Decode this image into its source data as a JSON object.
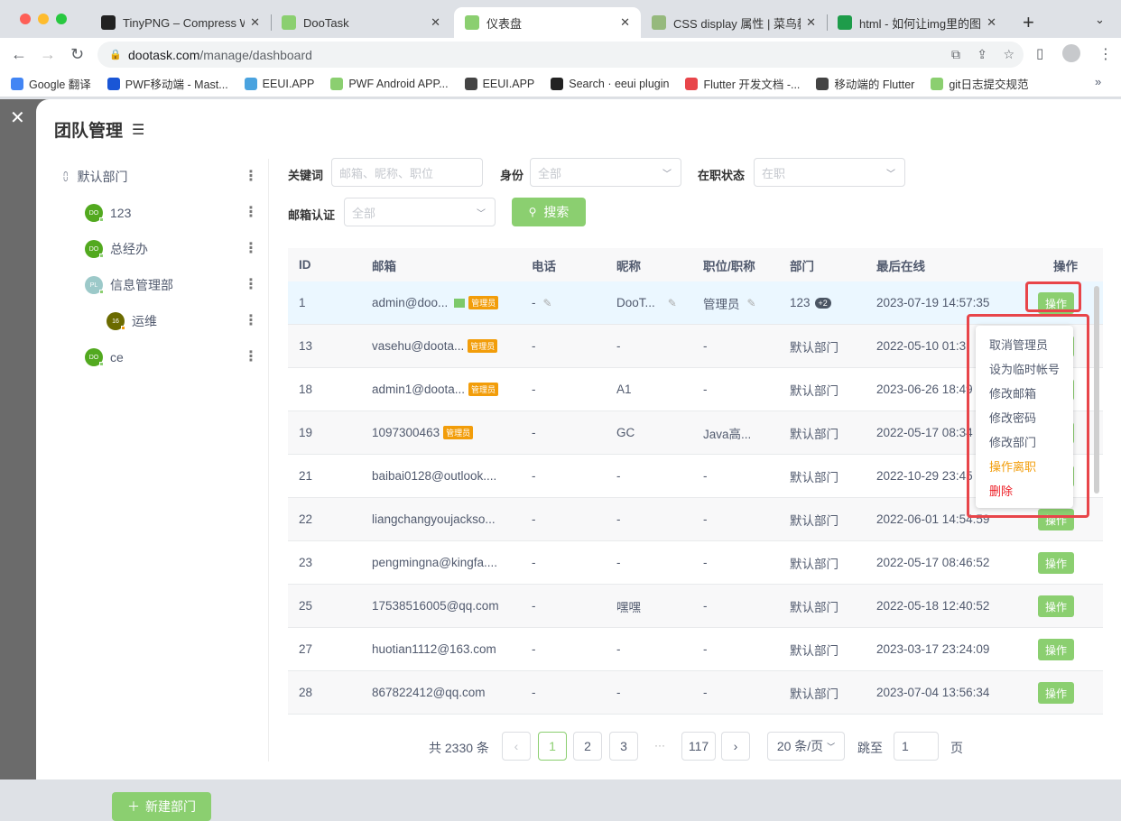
{
  "browser": {
    "tabs": [
      {
        "title": "TinyPNG – Compress We",
        "color": "#222"
      },
      {
        "title": "DooTask",
        "color": "#8bcf70"
      },
      {
        "title": "仪表盘",
        "color": "#8bcf70",
        "active": true
      },
      {
        "title": "CSS display 属性 | 菜鸟教",
        "color": "#96b97d"
      },
      {
        "title": "html - 如何让img里的图片",
        "color": "#1e9c4a"
      }
    ],
    "url_host": "dootask.com",
    "url_path": "/manage/dashboard",
    "bookmarks": [
      "Google 翻译",
      "PWF移动端 - Mast...",
      "EEUI.APP",
      "PWF Android APP...",
      "EEUI.APP",
      "Search · eeui plugin",
      "Flutter 开发文档 -...",
      "移动端的 Flutter",
      "git日志提交规范"
    ]
  },
  "modal": {
    "title": "团队管理",
    "new_dept": "新建部门"
  },
  "departments": [
    {
      "name": "默认部门",
      "level": 0,
      "avatar": "",
      "color": ""
    },
    {
      "name": "123",
      "level": 1,
      "avatar": "DO",
      "color": "#52a91f"
    },
    {
      "name": "总经办",
      "level": 1,
      "avatar": "DO",
      "color": "#52a91f"
    },
    {
      "name": "信息管理部",
      "level": 1,
      "avatar": "PL",
      "color": "#9cc9c9"
    },
    {
      "name": "运维",
      "level": 2,
      "avatar": "16",
      "color": "#6b6b00"
    },
    {
      "name": "ce",
      "level": 1,
      "avatar": "DO",
      "color": "#52a91f"
    }
  ],
  "filters": {
    "keyword_label": "关键词",
    "keyword_placeholder": "邮箱、昵称、职位",
    "identity_label": "身份",
    "identity_value": "全部",
    "status_label": "在职状态",
    "status_value": "在职",
    "email_label": "邮箱认证",
    "email_value": "全部",
    "search": "搜索"
  },
  "table": {
    "headers": [
      "ID",
      "邮箱",
      "电话",
      "昵称",
      "职位/职称",
      "部门",
      "最后在线",
      "操作"
    ],
    "admin_badge": "管理员",
    "op_label": "操作",
    "rows": [
      {
        "id": "1",
        "email": "admin@doo...",
        "verified": true,
        "admin": true,
        "phone": "-",
        "nick": "DooT...",
        "pos": "管理员",
        "dept": "123",
        "extra": "+2",
        "last": "2023-07-19 14:57:35",
        "editable": true
      },
      {
        "id": "13",
        "email": "vasehu@doota...",
        "admin": true,
        "phone": "-",
        "nick": "-",
        "pos": "-",
        "dept": "默认部门",
        "last": "2022-05-10 01:3"
      },
      {
        "id": "18",
        "email": "admin1@doota...",
        "admin": true,
        "phone": "-",
        "nick": "A1",
        "pos": "-",
        "dept": "默认部门",
        "last": "2023-06-26 18:49"
      },
      {
        "id": "19",
        "email": "1097300463",
        "admin": true,
        "phone": "-",
        "nick": "GC",
        "pos": "Java高...",
        "dept": "默认部门",
        "last": "2022-05-17 08:34"
      },
      {
        "id": "21",
        "email": "baibai0128@outlook....",
        "phone": "-",
        "nick": "-",
        "pos": "-",
        "dept": "默认部门",
        "last": "2022-10-29 23:45"
      },
      {
        "id": "22",
        "email": "liangchangyoujackso...",
        "phone": "-",
        "nick": "-",
        "pos": "-",
        "dept": "默认部门",
        "last": "2022-06-01 14:54:59"
      },
      {
        "id": "23",
        "email": "pengmingna@kingfa....",
        "phone": "-",
        "nick": "-",
        "pos": "-",
        "dept": "默认部门",
        "last": "2022-05-17 08:46:52"
      },
      {
        "id": "25",
        "email": "17538516005@qq.com",
        "phone": "-",
        "nick": "嘿嘿",
        "pos": "-",
        "dept": "默认部门",
        "last": "2022-05-18 12:40:52"
      },
      {
        "id": "27",
        "email": "huotian1112@163.com",
        "phone": "-",
        "nick": "-",
        "pos": "-",
        "dept": "默认部门",
        "last": "2023-03-17 23:24:09"
      },
      {
        "id": "28",
        "email": "867822412@qq.com",
        "phone": "-",
        "nick": "-",
        "pos": "-",
        "dept": "默认部门",
        "last": "2023-07-04 13:56:34"
      }
    ]
  },
  "menu": [
    {
      "label": "取消管理员",
      "color": "#515a6e"
    },
    {
      "label": "设为临时帐号",
      "color": "#515a6e"
    },
    {
      "label": "修改邮箱",
      "color": "#515a6e"
    },
    {
      "label": "修改密码",
      "color": "#515a6e"
    },
    {
      "label": "修改部门",
      "color": "#515a6e"
    },
    {
      "label": "操作离职",
      "color": "#f29d0a"
    },
    {
      "label": "删除",
      "color": "#ed1c24"
    }
  ],
  "pagination": {
    "total": "共 2330 条",
    "pages": [
      "1",
      "2",
      "3"
    ],
    "ellipsis": "···",
    "last": "117",
    "current": "1",
    "page_size": "20 条/页",
    "jump_label": "跳至",
    "jump_value": "1",
    "page_unit": "页"
  },
  "colors": {
    "primary": "#8bcf70",
    "highlight_box": "#e8454a"
  }
}
